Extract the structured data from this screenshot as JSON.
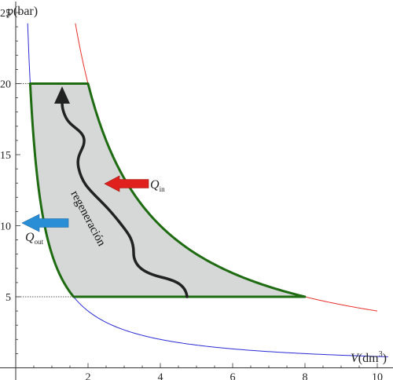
{
  "axes": {
    "y_label_var": "p",
    "y_label_unit": "(bar)",
    "x_label_var": "V",
    "x_label_unit_base": "(dm",
    "x_label_unit_sup": "3",
    "x_label_unit_close": ")",
    "x_ticks": [
      "2",
      "4",
      "6",
      "8",
      "10"
    ],
    "y_ticks": [
      "5",
      "10",
      "15",
      "20",
      "25"
    ]
  },
  "annotations": {
    "regeneration": "regeneración",
    "q_in_main": "Q",
    "q_in_sub": "in",
    "q_out_main": "Q",
    "q_out_sub": "out"
  },
  "chart_data": {
    "type": "line",
    "x_unit": "dm³",
    "y_unit": "bar",
    "xlim": [
      0,
      10.5
    ],
    "ylim": [
      0,
      26
    ],
    "grid": false,
    "series": [
      {
        "role": "hot isotherm",
        "color": "#e8302c",
        "points": [
          [
            2.0,
            20
          ],
          [
            4,
            10
          ],
          [
            8,
            5
          ],
          [
            10,
            4
          ]
        ]
      },
      {
        "role": "cold isotherm",
        "color": "#2b2bd6",
        "points": [
          [
            0.4,
            20
          ],
          [
            1.6,
            5
          ],
          [
            10,
            0.8
          ]
        ]
      },
      {
        "role": "cycle",
        "color": "#1e6b12",
        "vertices": [
          [
            0.4,
            20
          ],
          [
            2.0,
            20
          ],
          [
            8.0,
            5
          ],
          [
            1.6,
            5
          ]
        ]
      }
    ],
    "colors": {
      "cycle_fill": "#d6d8d8",
      "heat_in_arrow": "#e0201c",
      "heat_out_arrow": "#2a8ed6",
      "regen_arrow": "#222222"
    }
  }
}
